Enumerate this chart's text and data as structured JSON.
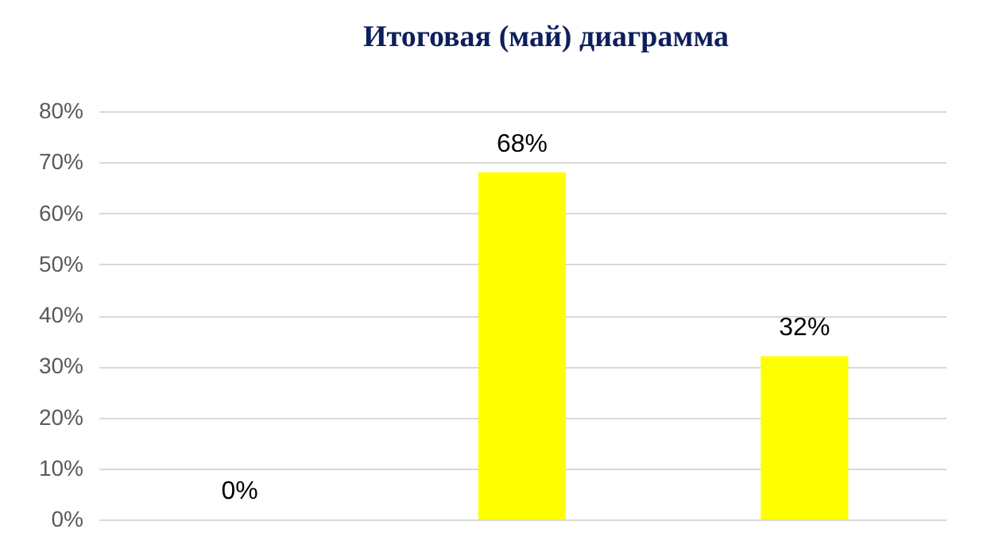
{
  "chart_data": {
    "type": "bar",
    "title": "Итоговая (май)  диаграмма",
    "categories": [
      null,
      null,
      null
    ],
    "values": [
      0,
      68,
      32
    ],
    "color": "#ffff00",
    "value_labels": [
      "0%",
      "68%",
      "32%"
    ],
    "ylim": [
      0,
      80
    ],
    "yticks": [
      {
        "value": 0,
        "label": "0%"
      },
      {
        "value": 10,
        "label": "10%"
      },
      {
        "value": 20,
        "label": "20%"
      },
      {
        "value": 30,
        "label": "30%"
      },
      {
        "value": 40,
        "label": "40%"
      },
      {
        "value": 50,
        "label": "50%"
      },
      {
        "value": 60,
        "label": "60%"
      },
      {
        "value": 70,
        "label": "70%"
      },
      {
        "value": 80,
        "label": "80%"
      }
    ],
    "grid": "y",
    "tick_labels": "y"
  }
}
